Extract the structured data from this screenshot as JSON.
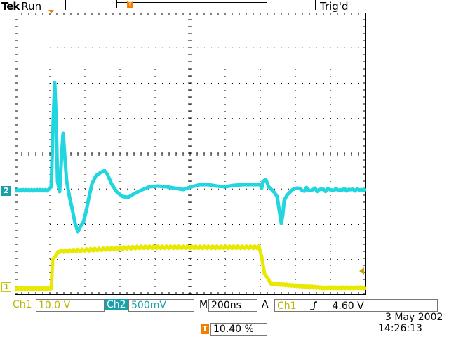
{
  "header": {
    "brand": "Tek",
    "acquisition_state": "Run",
    "trigger_state": "Trig'd",
    "trigger_position_icon": "T"
  },
  "markers": {
    "ch2_label": "2",
    "ch1_label": "1"
  },
  "waveforms": {
    "ch1_color": "#e8e800",
    "ch2_color": "#22d6e0",
    "grid_color": "#000000"
  },
  "status_bar": {
    "ch1_label": "Ch1",
    "ch1_scale": "10.0 V",
    "ch2_label": "Ch2",
    "ch2_scale": "500mV",
    "timebase_label": "M",
    "timebase": "200ns",
    "trigger_mode": "A",
    "trigger_source": "Ch1",
    "trigger_slope_icon": "rising-edge-icon",
    "trigger_level": "4.60 V"
  },
  "footer": {
    "trigger_icon": "T",
    "trigger_percent": "10.40 %",
    "date": "3 May 2002",
    "time": "14:26:13"
  }
}
